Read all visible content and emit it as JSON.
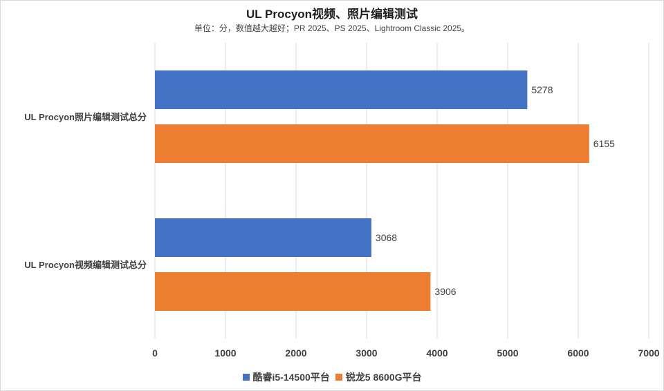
{
  "chart_data": {
    "type": "bar",
    "orientation": "horizontal",
    "title": "UL Procyon视频、照片编辑测试",
    "subtitle": "单位：分，数值越大越好；PR 2025、PS 2025、Lightroom Classic 2025。",
    "categories": [
      "UL Procyon照片编辑测试总分",
      "UL Procyon视频编辑测试总分"
    ],
    "series": [
      {
        "name": "酷睿i5-14500平台",
        "color": "#4472C4",
        "values": [
          5278,
          3068
        ]
      },
      {
        "name": "锐龙5 8600G平台",
        "color": "#ED7D31",
        "values": [
          6155,
          3906
        ]
      }
    ],
    "xlim": [
      0,
      7000
    ],
    "xticks": [
      0,
      1000,
      2000,
      3000,
      4000,
      5000,
      6000,
      7000
    ],
    "grid": true,
    "legend_position": "bottom"
  }
}
